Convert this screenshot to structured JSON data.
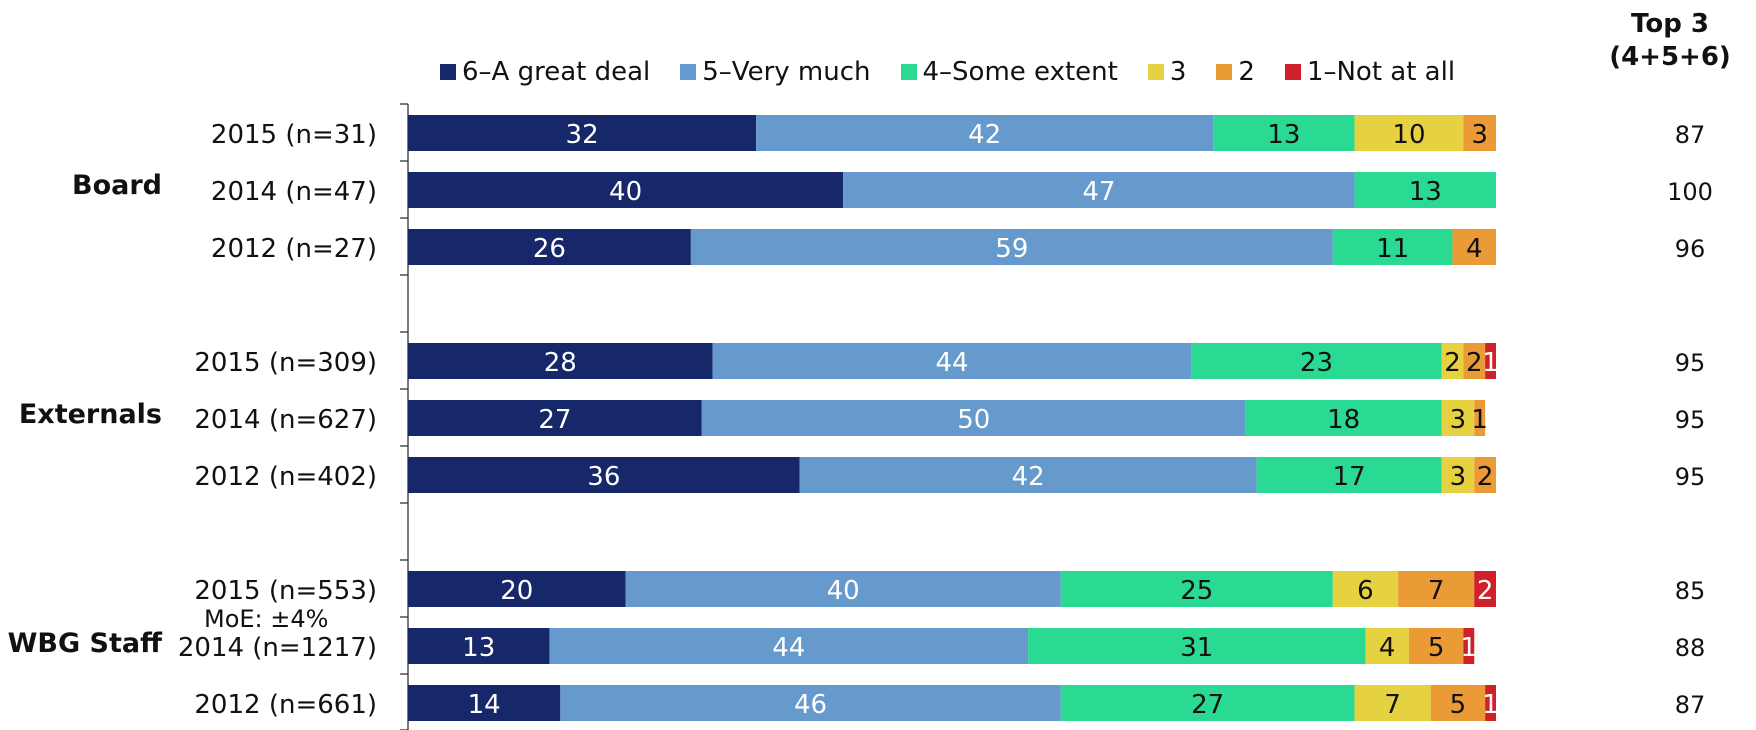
{
  "legend_title": "",
  "top3_header": {
    "line1": "Top 3",
    "line2": "(4+5+6)"
  },
  "moe_note": "MoE: ±4%",
  "colors": {
    "6-A great deal": "#16276a",
    "5-Very much": "#6699cc",
    "4-Some extent": "#2ad992",
    "3": "#e6d140",
    "2": "#ea9b35",
    "1-Not at all": "#d0202a"
  },
  "chart_data": {
    "type": "bar",
    "orientation": "horizontal-stacked-100",
    "xlim": [
      0,
      100
    ],
    "grid": false,
    "legend_position": "top",
    "series": [
      {
        "name": "6–A great deal",
        "color": "#16276a",
        "label_color": "#ffffff",
        "values": [
          32,
          40,
          26,
          28,
          27,
          36,
          20,
          13,
          14
        ]
      },
      {
        "name": "5–Very much",
        "color": "#6699cc",
        "label_color": "#ffffff",
        "values": [
          42,
          47,
          59,
          44,
          50,
          42,
          40,
          44,
          46
        ]
      },
      {
        "name": "4–Some extent",
        "color": "#2ad992",
        "label_color": "#111111",
        "values": [
          13,
          13,
          11,
          23,
          18,
          17,
          25,
          31,
          27
        ]
      },
      {
        "name": "3",
        "color": "#e6d140",
        "label_color": "#111111",
        "values": [
          10,
          0,
          0,
          2,
          3,
          3,
          6,
          4,
          7
        ]
      },
      {
        "name": "2",
        "color": "#ea9b35",
        "label_color": "#111111",
        "values": [
          3,
          0,
          4,
          2,
          1,
          2,
          7,
          5,
          5
        ]
      },
      {
        "name": "1–Not at all",
        "color": "#d0202a",
        "label_color": "#ffffff",
        "values": [
          0,
          0,
          0,
          1,
          0,
          0,
          2,
          1,
          1
        ]
      }
    ],
    "groups": [
      {
        "name": "Board",
        "rows": [
          {
            "label": "2015 (n=31)",
            "top3": "87"
          },
          {
            "label": "2014 (n=47)",
            "top3": "100"
          },
          {
            "label": "2012 (n=27)",
            "top3": "96"
          }
        ]
      },
      {
        "name": "Externals",
        "rows": [
          {
            "label": "2015 (n=309)",
            "top3": "95"
          },
          {
            "label": "2014 (n=627)",
            "top3": "95"
          },
          {
            "label": "2012 (n=402)",
            "top3": "95"
          }
        ]
      },
      {
        "name": "WBG Staff",
        "rows": [
          {
            "label": "2015 (n=553)",
            "top3": "85"
          },
          {
            "label": "2014 (n=1217)",
            "top3": "88"
          },
          {
            "label": "2012 (n=661)",
            "top3": "87"
          }
        ]
      }
    ]
  }
}
